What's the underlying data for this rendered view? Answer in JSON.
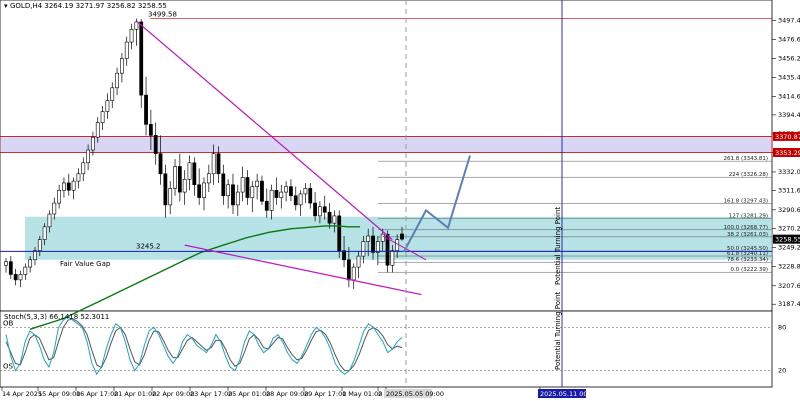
{
  "window": {
    "symbol_info": "GOLD,H4  3264.19 3271.97 3256.82 3258.55",
    "stoch_info": "Stoch(5,3,3) 66.1418 52.3011"
  },
  "chart_data": {
    "type": "candlestick",
    "title": "GOLD,H4",
    "ylim": [
      3180,
      3520
    ],
    "price_ticks": [
      3497.4,
      3476.6,
      3456.2,
      3435.4,
      3414.6,
      3394.4,
      3373.6,
      3353.2,
      3332.0,
      3311.6,
      3290.6,
      3270.2,
      3249.2,
      3228.8,
      3207.6,
      3187.4
    ],
    "x_ticks": [
      "14 Apr 2025",
      "15 Apr 09:00",
      "16 Apr 17:00",
      "21 Apr 01:00",
      "22 Apr 09:00",
      "23 Apr 17:00",
      "25 Apr 01:00",
      "28 Apr 09:00",
      "29 Apr 17:00",
      "1 May 01:00",
      "2",
      "2025.05.05 09:00",
      "2025.05.11 00:00"
    ],
    "current_price": {
      "value": 3258.55,
      "label": "3258.55",
      "color": "#000000"
    },
    "zone_prices": [
      {
        "value": 3370.87,
        "label": "3370.87",
        "color": "#c00000"
      },
      {
        "value": 3353.29,
        "label": "3353.29",
        "color": "#c00000"
      }
    ],
    "annotations": {
      "high_label": "3499.58",
      "level_label": "3245.2",
      "fvg_label": "Fair Value Gap",
      "vline_label": "Potential Turning Point",
      "vline_label_stoch": "Potential Turning Point"
    },
    "fib_levels": [
      {
        "label": "261.8 (3343.81)",
        "price": 3343.81
      },
      {
        "label": "224 (3326.28)",
        "price": 3326.28
      },
      {
        "label": "161.8 (3297.43)",
        "price": 3297.43
      },
      {
        "label": "127 (3281.29)",
        "price": 3281.29
      },
      {
        "label": "100.0 (3268.77)",
        "price": 3268.77
      },
      {
        "label": "38.2 (3261.03)",
        "price": 3261.03
      },
      {
        "label": "50.0 (3245.50)",
        "price": 3245.5
      },
      {
        "label": "61.8 (3240.11)",
        "price": 3240.11
      },
      {
        "label": "78.6 (3233.34)",
        "price": 3233.34
      },
      {
        "label": "0.0 (3222.39)",
        "price": 3222.39
      }
    ],
    "candles": [
      [
        3230,
        3238,
        3222,
        3234
      ],
      [
        3234,
        3240,
        3215,
        3220
      ],
      [
        3220,
        3226,
        3208,
        3214
      ],
      [
        3214,
        3224,
        3206,
        3220
      ],
      [
        3220,
        3232,
        3214,
        3228
      ],
      [
        3228,
        3240,
        3222,
        3236
      ],
      [
        3236,
        3250,
        3230,
        3246
      ],
      [
        3246,
        3262,
        3240,
        3258
      ],
      [
        3258,
        3276,
        3252,
        3272
      ],
      [
        3272,
        3290,
        3266,
        3286
      ],
      [
        3286,
        3304,
        3280,
        3298
      ],
      [
        3298,
        3318,
        3292,
        3312
      ],
      [
        3312,
        3326,
        3304,
        3320
      ],
      [
        3320,
        3330,
        3306,
        3312
      ],
      [
        3312,
        3326,
        3302,
        3322
      ],
      [
        3322,
        3336,
        3314,
        3330
      ],
      [
        3330,
        3348,
        3322,
        3342
      ],
      [
        3342,
        3362,
        3334,
        3356
      ],
      [
        3356,
        3376,
        3350,
        3370
      ],
      [
        3370,
        3392,
        3364,
        3386
      ],
      [
        3386,
        3404,
        3378,
        3398
      ],
      [
        3398,
        3418,
        3390,
        3410
      ],
      [
        3410,
        3430,
        3402,
        3424
      ],
      [
        3424,
        3446,
        3416,
        3440
      ],
      [
        3440,
        3462,
        3430,
        3456
      ],
      [
        3456,
        3480,
        3448,
        3474
      ],
      [
        3474,
        3494,
        3466,
        3488
      ],
      [
        3488,
        3499.58,
        3470,
        3496
      ],
      [
        3496,
        3499,
        3402,
        3416
      ],
      [
        3416,
        3436,
        3372,
        3384
      ],
      [
        3384,
        3400,
        3356,
        3372
      ],
      [
        3372,
        3386,
        3340,
        3352
      ],
      [
        3352,
        3372,
        3318,
        3330
      ],
      [
        3330,
        3340,
        3282,
        3296
      ],
      [
        3296,
        3322,
        3286,
        3314
      ],
      [
        3314,
        3346,
        3306,
        3338
      ],
      [
        3338,
        3352,
        3300,
        3310
      ],
      [
        3310,
        3334,
        3296,
        3324
      ],
      [
        3324,
        3350,
        3312,
        3342
      ],
      [
        3342,
        3348,
        3306,
        3318
      ],
      [
        3318,
        3336,
        3296,
        3304
      ],
      [
        3304,
        3326,
        3290,
        3320
      ],
      [
        3320,
        3340,
        3310,
        3330
      ],
      [
        3330,
        3362,
        3318,
        3352
      ],
      [
        3352,
        3360,
        3320,
        3330
      ],
      [
        3330,
        3340,
        3296,
        3306
      ],
      [
        3306,
        3324,
        3292,
        3318
      ],
      [
        3318,
        3330,
        3286,
        3296
      ],
      [
        3296,
        3318,
        3284,
        3310
      ],
      [
        3310,
        3338,
        3300,
        3326
      ],
      [
        3326,
        3334,
        3296,
        3304
      ],
      [
        3304,
        3322,
        3288,
        3316
      ],
      [
        3316,
        3330,
        3302,
        3322
      ],
      [
        3322,
        3328,
        3296,
        3300
      ],
      [
        3300,
        3314,
        3282,
        3290
      ],
      [
        3290,
        3318,
        3280,
        3312
      ],
      [
        3312,
        3326,
        3296,
        3304
      ],
      [
        3304,
        3318,
        3292,
        3310
      ],
      [
        3310,
        3322,
        3300,
        3316
      ],
      [
        3316,
        3324,
        3300,
        3306
      ],
      [
        3306,
        3316,
        3290,
        3296
      ],
      [
        3296,
        3312,
        3284,
        3308
      ],
      [
        3308,
        3320,
        3298,
        3314
      ],
      [
        3314,
        3320,
        3292,
        3298
      ],
      [
        3298,
        3310,
        3278,
        3284
      ],
      [
        3284,
        3300,
        3276,
        3294
      ],
      [
        3294,
        3306,
        3280,
        3288
      ],
      [
        3288,
        3298,
        3270,
        3276
      ],
      [
        3276,
        3290,
        3266,
        3284
      ],
      [
        3284,
        3290,
        3238,
        3246
      ],
      [
        3246,
        3262,
        3228,
        3236
      ],
      [
        3236,
        3250,
        3206,
        3214
      ],
      [
        3214,
        3232,
        3204,
        3228
      ],
      [
        3228,
        3246,
        3216,
        3240
      ],
      [
        3240,
        3262,
        3232,
        3256
      ],
      [
        3256,
        3270,
        3240,
        3262
      ],
      [
        3262,
        3272,
        3236,
        3244
      ],
      [
        3244,
        3262,
        3230,
        3256
      ],
      [
        3256,
        3270,
        3246,
        3264
      ],
      [
        3264,
        3268,
        3222,
        3230
      ],
      [
        3230,
        3252,
        3222,
        3246
      ],
      [
        3246,
        3264,
        3238,
        3258
      ],
      [
        3264.19,
        3271.97,
        3256.82,
        3258.55
      ]
    ],
    "forecast_path": [
      [
        3258,
        3245
      ],
      [
        3298,
        3290
      ],
      [
        3328,
        3271
      ],
      [
        3372,
        3350
      ]
    ],
    "ema_green": [
      3160,
      3164,
      3168,
      3172,
      3178,
      3184,
      3190,
      3196,
      3202,
      3208,
      3214,
      3220,
      3226,
      3232,
      3238,
      3244,
      3248,
      3252,
      3256,
      3260,
      3263,
      3266,
      3268,
      3270,
      3271,
      3272,
      3273,
      3273,
      3272,
      3272
    ],
    "stoch": {
      "k": [
        70,
        40,
        20,
        30,
        60,
        75,
        70,
        55,
        35,
        25,
        45,
        80,
        90,
        95,
        90,
        85,
        80,
        60,
        30,
        15,
        25,
        50,
        70,
        85,
        80,
        60,
        35,
        20,
        30,
        55,
        75,
        80,
        70,
        55,
        40,
        30,
        40,
        60,
        70,
        65,
        55,
        50,
        45,
        55,
        70,
        60,
        40,
        25,
        20,
        35,
        60,
        75,
        70,
        55,
        45,
        50,
        65,
        70,
        60,
        45,
        35,
        30,
        40,
        55,
        70,
        80,
        75,
        65,
        50,
        30,
        20,
        15,
        20,
        35,
        55,
        75,
        85,
        80,
        70,
        60,
        45,
        50,
        60,
        66
      ],
      "d": [
        60,
        45,
        30,
        28,
        45,
        65,
        70,
        65,
        50,
        35,
        38,
        60,
        80,
        90,
        92,
        88,
        82,
        70,
        48,
        28,
        24,
        38,
        58,
        75,
        80,
        70,
        50,
        32,
        28,
        42,
        62,
        75,
        74,
        62,
        48,
        38,
        38,
        50,
        62,
        66,
        60,
        54,
        48,
        52,
        62,
        62,
        50,
        35,
        26,
        30,
        46,
        64,
        70,
        63,
        52,
        50,
        58,
        66,
        64,
        52,
        42,
        35,
        37,
        48,
        62,
        74,
        76,
        70,
        58,
        42,
        28,
        20,
        20,
        28,
        42,
        60,
        76,
        80,
        76,
        68,
        56,
        50,
        54,
        52
      ],
      "levels": [
        "80",
        "20"
      ],
      "ob_label": "OB",
      "os_label": "OS"
    }
  }
}
